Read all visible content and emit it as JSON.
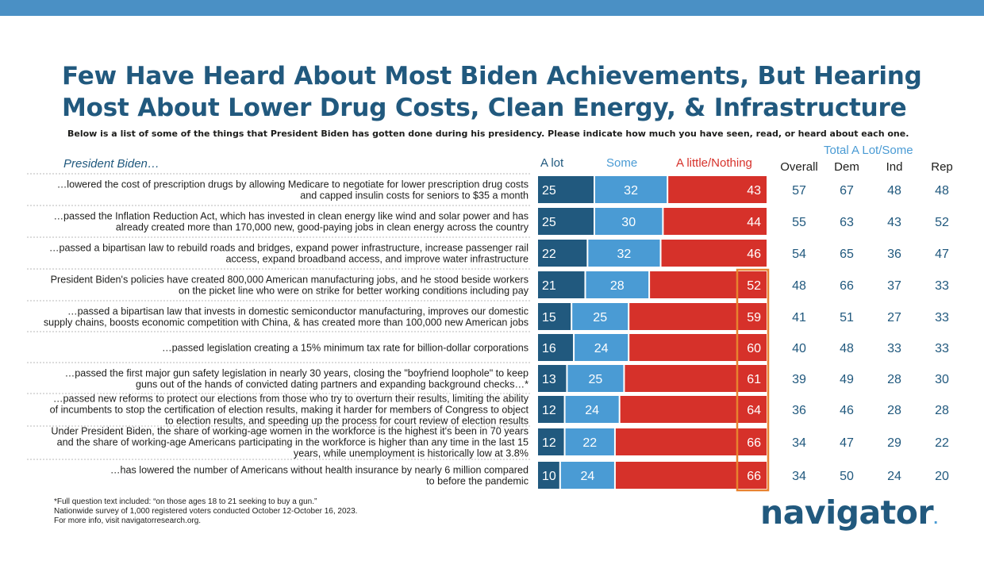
{
  "title_line1": "Few Have Heard About Most Biden Achievements, But Hearing",
  "title_line2": "Most About Lower Drug Costs, Clean Energy, & Infrastructure",
  "subtitle": "Below is a list of some of the things that President Biden has gotten done during his presidency. Please indicate how much you have seen, read, or heard about each one.",
  "row_header": "President Biden…",
  "total_header": "Total A Lot/Some",
  "total_columns": [
    "Overall",
    "Dem",
    "Ind",
    "Rep"
  ],
  "footnotes": [
    "*Full question text included: “on those ages 18 to 21 seeking to buy a gun.”",
    "Nationwide survey of 1,000 registered voters conducted October 12-October 16, 2023.",
    "For more info, visit navigatorresearch.org."
  ],
  "logo_text": "navigator",
  "logo_dot": ".",
  "colors": {
    "title": "#21597e",
    "alot": "#21597e",
    "some": "#4a9bd4",
    "little": "#d6312a",
    "highlight_box": "#e8822f",
    "top_bar": "#4a90c5"
  },
  "chart_data": {
    "type": "bar",
    "orientation": "horizontal",
    "stacked": true,
    "xlim": [
      0,
      100
    ],
    "series": [
      {
        "name": "A lot",
        "values": [
          25,
          25,
          22,
          21,
          15,
          16,
          13,
          12,
          12,
          10
        ]
      },
      {
        "name": "Some",
        "values": [
          32,
          30,
          32,
          28,
          25,
          24,
          25,
          24,
          22,
          24
        ]
      },
      {
        "name": "A little/Nothing",
        "values": [
          43,
          44,
          46,
          52,
          59,
          60,
          61,
          64,
          66,
          66
        ]
      }
    ],
    "categories": [
      [
        "…lowered the cost of prescription drugs by allowing Medicare to negotiate for lower prescription drug costs",
        "and capped insulin costs for seniors to $35 a month"
      ],
      [
        "…passed the Inflation Reduction Act, which has invested in clean energy like wind and solar power and has",
        "already created more than 170,000 new, good-paying jobs in clean energy across the country"
      ],
      [
        "…passed a bipartisan law to rebuild roads and bridges, expand power infrastructure, increase passenger rail",
        "access, expand broadband access, and improve water infrastructure"
      ],
      [
        "President Biden's policies have created 800,000 American manufacturing jobs, and he stood beside workers",
        "on the picket line who were on strike for better working conditions including pay"
      ],
      [
        "…passed a bipartisan law that invests in domestic semiconductor manufacturing, improves our domestic",
        "supply chains, boosts economic competition with China, & has created more than 100,000 new American jobs"
      ],
      [
        "…passed legislation creating a 15% minimum tax rate for billion-dollar corporations"
      ],
      [
        "…passed the first major gun safety legislation in nearly 30 years, closing the \"boyfriend loophole\" to keep",
        "guns out of the hands of convicted dating partners and expanding background checks…*"
      ],
      [
        "…passed new reforms to protect our elections from those who try to overturn their results, limiting the ability",
        "of incumbents to stop the certification of election results, making it harder for members of Congress to object",
        "to election results, and speeding up the process for court review of election results"
      ],
      [
        "Under President Biden, the share of working-age women in the workforce is the highest it's been in 70 years",
        "and the share of working-age Americans participating in the workforce is higher than any time in the last 15",
        "years, while unemployment is historically low at 3.8%"
      ],
      [
        "…has lowered the number of Americans without health insurance by nearly 6 million compared",
        "to before the pandemic"
      ]
    ],
    "totals": {
      "Overall": [
        57,
        55,
        54,
        48,
        41,
        40,
        39,
        36,
        34,
        34
      ],
      "Dem": [
        67,
        63,
        65,
        66,
        51,
        48,
        49,
        46,
        47,
        50
      ],
      "Ind": [
        48,
        43,
        36,
        37,
        27,
        33,
        28,
        28,
        29,
        24
      ],
      "Rep": [
        48,
        52,
        47,
        33,
        33,
        33,
        30,
        28,
        22,
        20
      ]
    },
    "highlighted_rows": [
      3,
      4,
      5,
      6,
      7,
      8,
      9
    ]
  }
}
